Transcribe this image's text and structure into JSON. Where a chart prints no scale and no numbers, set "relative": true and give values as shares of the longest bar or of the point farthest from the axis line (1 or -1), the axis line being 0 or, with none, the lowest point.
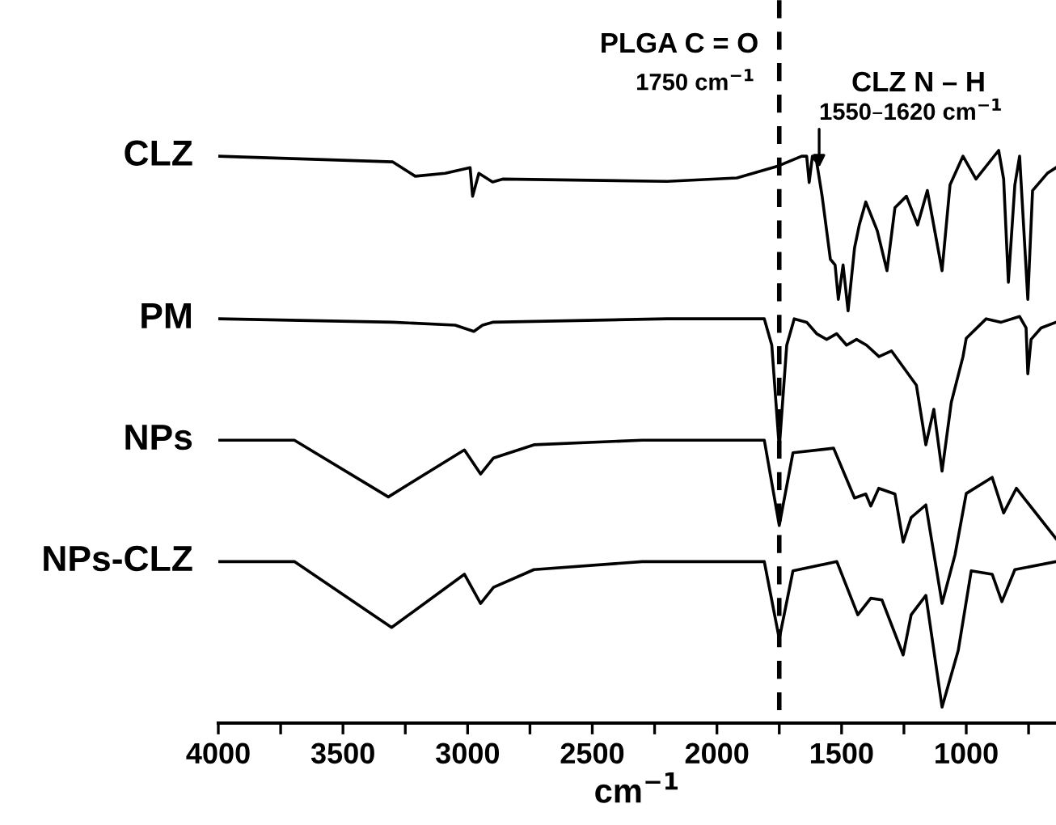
{
  "chart_data": {
    "type": "line",
    "relative": true,
    "xlabel": "cm$^{−1}$",
    "xlim": [
      4000,
      640
    ],
    "xticks": [
      4000,
      {
        "value": 3750,
        "label": null
      },
      3500,
      {
        "value": 3250,
        "label": null
      },
      3000,
      {
        "value": 2750,
        "label": null
      },
      2500,
      {
        "value": 2250,
        "label": null
      },
      2000,
      {
        "value": 1750,
        "label": null
      },
      1500,
      {
        "value": 1250,
        "label": null
      },
      1000,
      {
        "value": 750,
        "label": null
      }
    ],
    "tick_labels": "x",
    "grid": false,
    "legend": false,
    "marker": "none",
    "line_style": "solid",
    "ref_lines": [
      {
        "axis": "x",
        "value": 1750,
        "label": null,
        "color": "#000000",
        "line_style": "dashed"
      }
    ],
    "annotations": [
      "PLGA C = O",
      "1750 cm$^{−1}$",
      "CLZ N – H",
      {
        "text": "1550–1620 cm$^{−1}$",
        "x": 1590,
        "y": 0.97
      }
    ],
    "series": [
      {
        "name": "CLZ",
        "color": "#000000",
        "x": [
          4000,
          3300,
          3210,
          3090,
          2990,
          2980,
          2955,
          2900,
          2860,
          2200,
          1920,
          1760,
          1660,
          1640,
          1630,
          1617,
          1600,
          1578,
          1545,
          1526,
          1513,
          1494,
          1474,
          1448,
          1429,
          1403,
          1357,
          1318,
          1286,
          1240,
          1195,
          1156,
          1097,
          1065,
          1013,
          961,
          870,
          850,
          831,
          805,
          786,
          753,
          734,
          675,
          640
        ],
        "values": [
          0.99,
          0.98,
          0.955,
          0.96,
          0.97,
          0.92,
          0.96,
          0.945,
          0.95,
          0.946,
          0.952,
          0.972,
          0.99,
          0.99,
          0.944,
          0.99,
          0.98,
          0.92,
          0.81,
          0.8,
          0.74,
          0.8,
          0.72,
          0.83,
          0.87,
          0.91,
          0.86,
          0.79,
          0.9,
          0.92,
          0.87,
          0.93,
          0.79,
          0.94,
          0.99,
          0.95,
          1.0,
          0.95,
          0.77,
          0.94,
          0.99,
          0.74,
          0.93,
          0.96,
          0.97
        ]
      },
      {
        "name": "PM",
        "color": "#000000",
        "x": [
          4000,
          3300,
          3050,
          2975,
          2940,
          2900,
          2200,
          1810,
          1780,
          1750,
          1720,
          1690,
          1640,
          1600,
          1560,
          1520,
          1480,
          1440,
          1400,
          1350,
          1300,
          1250,
          1200,
          1162,
          1130,
          1097,
          1060,
          1013,
          1000,
          920,
          860,
          786,
          760,
          753,
          740,
          700,
          640
        ],
        "values": [
          0.706,
          0.7,
          0.695,
          0.684,
          0.695,
          0.7,
          0.706,
          0.706,
          0.66,
          0.48,
          0.66,
          0.706,
          0.7,
          0.68,
          0.67,
          0.68,
          0.66,
          0.67,
          0.66,
          0.64,
          0.65,
          0.62,
          0.59,
          0.486,
          0.548,
          0.44,
          0.56,
          0.64,
          0.672,
          0.706,
          0.7,
          0.71,
          0.69,
          0.61,
          0.67,
          0.69,
          0.7
        ]
      },
      {
        "name": "NPs",
        "color": "#000000",
        "x": [
          4000,
          3695,
          3318,
          3013,
          2948,
          2896,
          2734,
          2300,
          1810,
          1750,
          1695,
          1532,
          1448,
          1403,
          1383,
          1351,
          1286,
          1253,
          1221,
          1162,
          1097,
          1045,
          1000,
          896,
          850,
          799,
          640
        ],
        "values": [
          0.494,
          0.494,
          0.395,
          0.477,
          0.435,
          0.463,
          0.486,
          0.494,
          0.494,
          0.345,
          0.472,
          0.48,
          0.393,
          0.4,
          0.379,
          0.41,
          0.4,
          0.316,
          0.359,
          0.381,
          0.209,
          0.294,
          0.401,
          0.429,
          0.367,
          0.41,
          0.322
        ]
      },
      {
        "name": "NPs-CLZ",
        "color": "#000000",
        "x": [
          4000,
          3695,
          3305,
          3013,
          2948,
          2896,
          2734,
          2300,
          1810,
          1750,
          1695,
          1519,
          1435,
          1383,
          1338,
          1253,
          1221,
          1162,
          1097,
          1032,
          980,
          896,
          857,
          805,
          640
        ],
        "values": [
          0.282,
          0.282,
          0.167,
          0.26,
          0.209,
          0.237,
          0.268,
          0.282,
          0.282,
          0.147,
          0.266,
          0.282,
          0.189,
          0.218,
          0.215,
          0.119,
          0.189,
          0.223,
          0.028,
          0.127,
          0.266,
          0.26,
          0.212,
          0.268,
          0.282
        ]
      }
    ]
  }
}
